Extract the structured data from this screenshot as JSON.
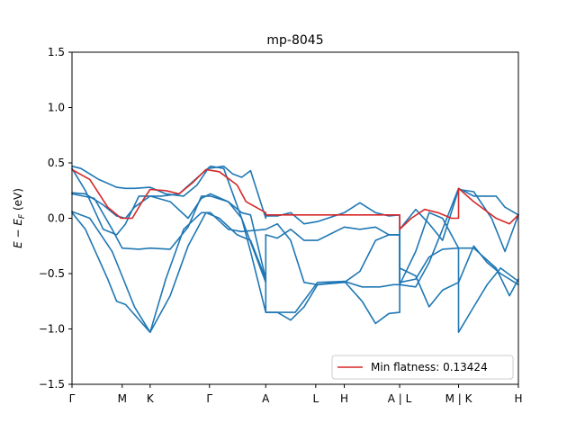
{
  "chart_data": {
    "type": "line",
    "title": "mp-8045",
    "xlabel": "",
    "ylabel": "E − E_F (eV)",
    "ylabel_parts": {
      "main": "E − E",
      "sub": "F",
      "unit": " (eV)"
    },
    "ylim": [
      -1.5,
      1.5
    ],
    "yticks": [
      -1.5,
      -1.0,
      -0.5,
      0.0,
      0.5,
      1.0,
      1.5
    ],
    "ytick_labels": [
      "−1.5",
      "−1.0",
      "−0.5",
      "0.0",
      "0.5",
      "1.0",
      "1.5"
    ],
    "xlim": [
      0,
      10
    ],
    "xticks": [
      {
        "x": 0.0,
        "label": "Γ"
      },
      {
        "x": 1.125,
        "label": "M"
      },
      {
        "x": 1.75,
        "label": "K"
      },
      {
        "x": 3.08,
        "label": "Γ"
      },
      {
        "x": 4.34,
        "label": "A"
      },
      {
        "x": 5.46,
        "label": "L"
      },
      {
        "x": 6.1,
        "label": "H"
      },
      {
        "x": 7.34,
        "label": "A | L"
      },
      {
        "x": 8.66,
        "label": "M | K"
      },
      {
        "x": 10.0,
        "label": "H"
      }
    ],
    "grid": false,
    "legend": {
      "placement": "lower-right",
      "entries": [
        {
          "label": "Min flatness: 0.13424",
          "color": "#d62728"
        }
      ]
    },
    "colors": {
      "band": "#1f77b4",
      "highlight": "#d62728"
    },
    "series": [
      {
        "values": [
          [
            0.0,
            0.47
          ],
          [
            0.2,
            0.45
          ],
          [
            0.6,
            0.35
          ],
          [
            1.0,
            0.28
          ],
          [
            1.2,
            0.27
          ],
          [
            1.4,
            0.27
          ],
          [
            1.75,
            0.28
          ],
          [
            2.1,
            0.22
          ],
          [
            2.5,
            0.2
          ],
          [
            2.8,
            0.3
          ],
          [
            3.05,
            0.45
          ],
          [
            3.4,
            0.47
          ],
          [
            3.6,
            0.4
          ],
          [
            3.8,
            0.37
          ],
          [
            4.0,
            0.43
          ],
          [
            4.34,
            0.0
          ],
          [
            4.34,
            0.02
          ],
          [
            4.6,
            0.02
          ],
          [
            4.9,
            0.05
          ],
          [
            5.2,
            -0.05
          ],
          [
            5.5,
            -0.03
          ],
          [
            6.1,
            0.05
          ],
          [
            6.45,
            0.14
          ],
          [
            6.8,
            0.05
          ],
          [
            7.1,
            0.02
          ],
          [
            7.34,
            0.03
          ],
          [
            7.34,
            -0.6
          ],
          [
            7.7,
            -0.62
          ],
          [
            8.0,
            -0.4
          ],
          [
            8.3,
            -0.1
          ],
          [
            8.66,
            0.27
          ],
          [
            9.0,
            0.2
          ],
          [
            9.5,
            0.2
          ],
          [
            9.7,
            0.1
          ],
          [
            10.0,
            0.03
          ]
        ]
      },
      {
        "values": [
          [
            0.0,
            0.23
          ],
          [
            0.3,
            0.22
          ],
          [
            0.7,
            0.12
          ],
          [
            1.0,
            0.02
          ],
          [
            1.2,
            0.0
          ],
          [
            1.4,
            0.1
          ],
          [
            1.75,
            0.2
          ],
          [
            2.2,
            0.15
          ],
          [
            2.6,
            0.0
          ],
          [
            2.9,
            0.18
          ],
          [
            3.1,
            0.22
          ],
          [
            3.5,
            0.15
          ],
          [
            3.8,
            0.05
          ],
          [
            4.0,
            0.03
          ],
          [
            4.34,
            -0.55
          ],
          [
            4.34,
            -0.15
          ],
          [
            4.6,
            -0.18
          ],
          [
            4.9,
            -0.1
          ],
          [
            5.2,
            -0.2
          ],
          [
            5.5,
            -0.2
          ],
          [
            6.1,
            -0.08
          ],
          [
            6.45,
            -0.1
          ],
          [
            6.8,
            -0.08
          ],
          [
            7.1,
            -0.15
          ],
          [
            7.34,
            -0.15
          ],
          [
            7.34,
            -0.45
          ],
          [
            7.7,
            -0.52
          ],
          [
            8.0,
            -0.8
          ],
          [
            8.3,
            -0.65
          ],
          [
            8.66,
            -0.58
          ],
          [
            9.0,
            -0.25
          ],
          [
            9.3,
            -0.4
          ],
          [
            9.6,
            -0.5
          ],
          [
            10.0,
            -0.6
          ]
        ]
      },
      {
        "values": [
          [
            0.0,
            0.22
          ],
          [
            0.5,
            0.18
          ],
          [
            0.9,
            -0.1
          ],
          [
            1.125,
            -0.27
          ],
          [
            1.5,
            -0.28
          ],
          [
            1.75,
            -0.27
          ],
          [
            2.2,
            -0.28
          ],
          [
            2.6,
            -0.08
          ],
          [
            2.9,
            0.2
          ],
          [
            3.1,
            0.2
          ],
          [
            3.5,
            0.15
          ],
          [
            3.8,
            0.0
          ],
          [
            4.0,
            -0.3
          ],
          [
            4.34,
            -0.85
          ],
          [
            4.6,
            -0.85
          ],
          [
            4.9,
            -0.92
          ],
          [
            5.2,
            -0.8
          ],
          [
            5.5,
            -0.6
          ],
          [
            6.1,
            -0.57
          ],
          [
            6.5,
            -0.75
          ],
          [
            6.8,
            -0.95
          ],
          [
            7.1,
            -0.86
          ],
          [
            7.34,
            -0.85
          ],
          [
            7.34,
            -0.1
          ],
          [
            7.7,
            0.08
          ],
          [
            8.0,
            -0.05
          ],
          [
            8.3,
            -0.2
          ],
          [
            8.66,
            0.26
          ],
          [
            9.0,
            0.24
          ],
          [
            9.4,
            0.0
          ],
          [
            9.7,
            -0.3
          ],
          [
            10.0,
            0.03
          ]
        ]
      },
      {
        "values": [
          [
            0.0,
            0.06
          ],
          [
            0.4,
            0.0
          ],
          [
            0.9,
            -0.3
          ],
          [
            1.1,
            -0.5
          ],
          [
            1.4,
            -0.8
          ],
          [
            1.75,
            -1.03
          ],
          [
            2.1,
            -0.55
          ],
          [
            2.5,
            -0.1
          ],
          [
            2.9,
            0.05
          ],
          [
            3.1,
            0.05
          ],
          [
            3.5,
            -0.1
          ],
          [
            3.8,
            -0.12
          ],
          [
            4.34,
            -0.1
          ],
          [
            4.6,
            -0.05
          ],
          [
            4.9,
            -0.2
          ],
          [
            5.2,
            -0.58
          ],
          [
            5.5,
            -0.6
          ],
          [
            6.1,
            -0.58
          ],
          [
            6.45,
            -0.48
          ],
          [
            6.8,
            -0.2
          ],
          [
            7.1,
            -0.15
          ],
          [
            7.34,
            -0.15
          ],
          [
            7.34,
            -0.58
          ],
          [
            7.7,
            -0.55
          ],
          [
            8.0,
            -0.35
          ],
          [
            8.3,
            -0.28
          ],
          [
            8.66,
            -0.27
          ],
          [
            9.0,
            -0.27
          ],
          [
            9.5,
            -0.45
          ],
          [
            9.8,
            -0.7
          ],
          [
            10.0,
            -0.55
          ]
        ]
      },
      {
        "values": [
          [
            0.0,
            0.05
          ],
          [
            0.3,
            -0.1
          ],
          [
            0.8,
            -0.55
          ],
          [
            1.0,
            -0.75
          ],
          [
            1.2,
            -0.78
          ],
          [
            1.75,
            -1.03
          ],
          [
            2.2,
            -0.7
          ],
          [
            2.6,
            -0.25
          ],
          [
            3.0,
            0.05
          ],
          [
            3.3,
            0.0
          ],
          [
            3.7,
            -0.15
          ],
          [
            4.0,
            -0.2
          ],
          [
            4.34,
            -0.55
          ],
          [
            4.34,
            -0.85
          ],
          [
            5.0,
            -0.85
          ],
          [
            5.5,
            -0.58
          ],
          [
            6.1,
            -0.57
          ],
          [
            6.5,
            -0.62
          ],
          [
            6.9,
            -0.62
          ],
          [
            7.2,
            -0.6
          ],
          [
            7.34,
            -0.6
          ],
          [
            7.7,
            -0.3
          ],
          [
            8.0,
            0.05
          ],
          [
            8.3,
            0.0
          ],
          [
            8.66,
            -0.27
          ],
          [
            8.66,
            -1.03
          ],
          [
            9.0,
            -0.8
          ],
          [
            9.3,
            -0.6
          ],
          [
            9.6,
            -0.45
          ],
          [
            10.0,
            -0.57
          ]
        ]
      },
      {
        "values": [
          [
            0.0,
            0.45
          ],
          [
            0.3,
            0.25
          ],
          [
            0.7,
            -0.1
          ],
          [
            1.0,
            -0.15
          ],
          [
            1.2,
            -0.05
          ],
          [
            1.5,
            0.2
          ],
          [
            1.75,
            0.2
          ],
          [
            2.0,
            0.2
          ],
          [
            2.4,
            0.22
          ],
          [
            2.9,
            0.4
          ],
          [
            3.1,
            0.47
          ],
          [
            3.4,
            0.45
          ],
          [
            3.8,
            0.0
          ],
          [
            4.34,
            -0.58
          ]
        ]
      }
    ],
    "highlight_band": {
      "values": [
        [
          0.0,
          0.44
        ],
        [
          0.4,
          0.35
        ],
        [
          0.8,
          0.1
        ],
        [
          1.1,
          0.0
        ],
        [
          1.35,
          0.0
        ],
        [
          1.6,
          0.17
        ],
        [
          1.75,
          0.26
        ],
        [
          2.1,
          0.25
        ],
        [
          2.4,
          0.22
        ],
        [
          2.7,
          0.32
        ],
        [
          3.0,
          0.44
        ],
        [
          3.3,
          0.42
        ],
        [
          3.7,
          0.3
        ],
        [
          3.9,
          0.15
        ],
        [
          4.34,
          0.05
        ],
        [
          4.34,
          0.03
        ],
        [
          7.34,
          0.03
        ],
        [
          7.34,
          -0.1
        ],
        [
          7.6,
          0.0
        ],
        [
          7.9,
          0.08
        ],
        [
          8.2,
          0.05
        ],
        [
          8.5,
          0.0
        ],
        [
          8.66,
          0.0
        ],
        [
          8.66,
          0.27
        ],
        [
          9.0,
          0.15
        ],
        [
          9.5,
          0.0
        ],
        [
          9.8,
          -0.05
        ],
        [
          10.0,
          0.03
        ]
      ]
    }
  }
}
